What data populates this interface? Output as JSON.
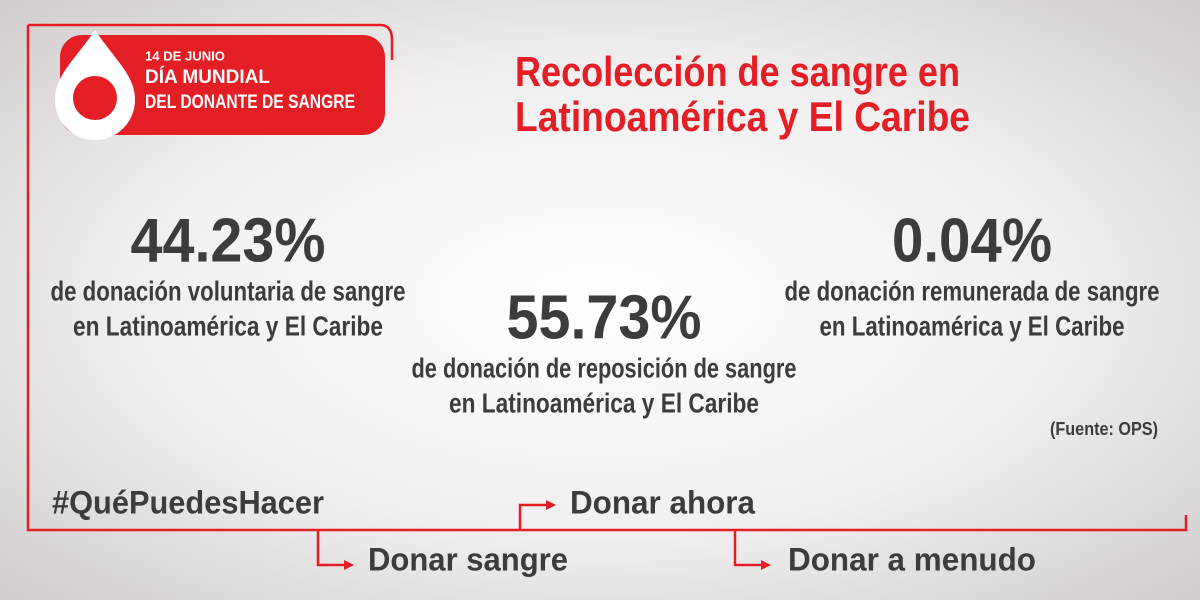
{
  "badge": {
    "date": "14 DE JUNIO",
    "line1": "DÍA MUNDIAL",
    "line2": "DEL DONANTE DE SANGRE"
  },
  "title": [
    "Recolección de sangre en",
    "Latinoamérica y El Caribe"
  ],
  "stats": [
    {
      "value": "44.23%",
      "description": [
        "de donación voluntaria de sangre",
        "en Latinoamérica y El Caribe"
      ]
    },
    {
      "value": "55.73%",
      "description": [
        "de donación de reposición de sangre",
        "en Latinoamérica y El Caribe"
      ]
    },
    {
      "value": "0.04%",
      "description": [
        "de donación remunerada de sangre",
        "en Latinoamérica y El Caribe"
      ]
    }
  ],
  "source": "(Fuente: OPS)",
  "hashtag": "#QuéPuedesHacer",
  "actions": [
    "Donar ahora",
    "Donar sangre",
    "Donar a menudo"
  ]
}
